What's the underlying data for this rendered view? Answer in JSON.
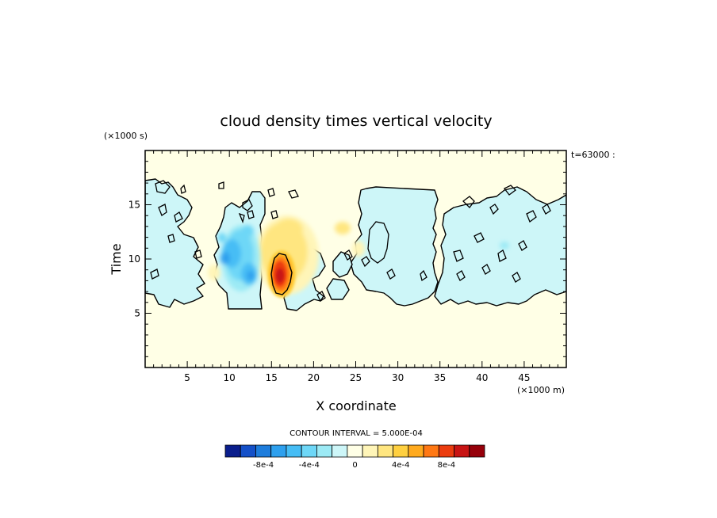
{
  "chart_data": {
    "type": "heatmap",
    "title": "cloud density times vertical velocity",
    "xlabel": "X coordinate",
    "ylabel": "Time",
    "x_scale_note": "(×1000 m)",
    "y_scale_note": "(×1000 s)",
    "time_note": "t=63000 :",
    "xlim": [
      0,
      50
    ],
    "ylim": [
      0,
      20
    ],
    "x_ticks": [
      5,
      10,
      15,
      20,
      25,
      30,
      35,
      40,
      45
    ],
    "y_ticks": [
      5,
      10,
      15
    ],
    "contour_interval": "CONTOUR INTERVAL = 5.000E-04",
    "colorbar": {
      "labels": [
        "-8e-4",
        "-4e-4",
        "0",
        "4e-4",
        "8e-4"
      ],
      "colors": [
        "#0a1e8c",
        "#1450c8",
        "#1e7ddc",
        "#2ea0ee",
        "#46bdf5",
        "#6ed7f7",
        "#9ceaf5",
        "#cdf6f8",
        "#ffffe6",
        "#fff5b8",
        "#ffe680",
        "#ffd040",
        "#ffaa1e",
        "#ff7814",
        "#eb3c0f",
        "#c81414",
        "#96000a"
      ]
    },
    "features": [
      {
        "name": "negative region (blue) x≈8–14",
        "x": [
          8.5,
          13.5
        ],
        "y": [
          5.5,
          16.5
        ],
        "min_value": -0.0006
      },
      {
        "name": "positive core (red) x≈15–17",
        "x": [
          14.5,
          17.5
        ],
        "y": [
          7,
          11.5
        ],
        "max_value": 0.0009
      },
      {
        "name": "positive region (yellow) x≈13–20",
        "x": [
          13,
          20
        ],
        "y": [
          6,
          14
        ],
        "value": 0.0002
      },
      {
        "name": "weak negative cloud x≈26–33",
        "x": [
          25.5,
          33
        ],
        "y": [
          6,
          16
        ],
        "value": -5e-05
      },
      {
        "name": "weak negative cloud x≈35–50",
        "x": [
          35,
          50
        ],
        "y": [
          5.5,
          17
        ],
        "value": -5e-05
      }
    ]
  }
}
